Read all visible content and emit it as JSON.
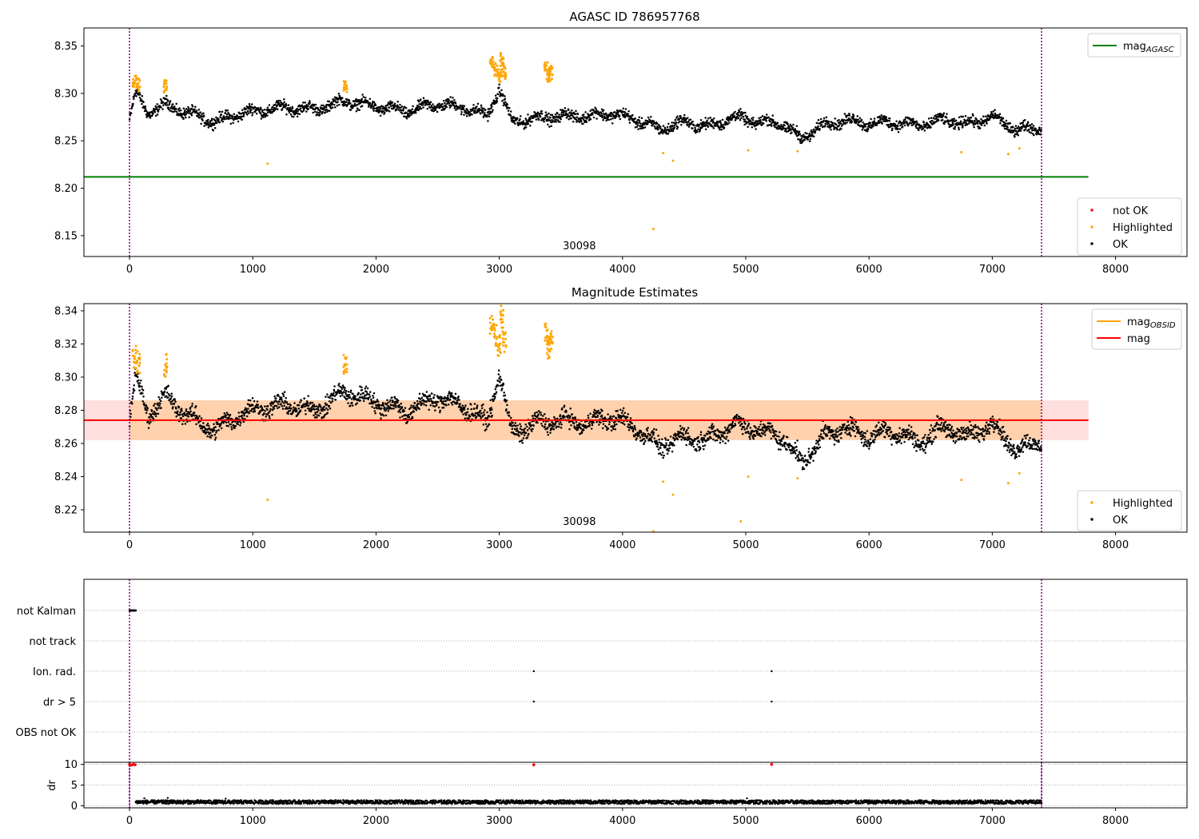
{
  "colors": {
    "ok": "#000000",
    "highlighted": "#ffa500",
    "not_ok": "#ff0000",
    "agasc_line": "#008000",
    "mag_line": "#ff0000",
    "obsid_line": "#ffa500",
    "band": "#ffb6b6",
    "vline": "#800080",
    "flag_points": "#000000"
  },
  "chart_data": [
    {
      "type": "scatter",
      "title": "AGASC ID 786957768",
      "xlim": [
        -370,
        8580
      ],
      "ylim": [
        8.128,
        8.369
      ],
      "xticks": [
        0,
        1000,
        2000,
        3000,
        4000,
        5000,
        6000,
        7000,
        8000
      ],
      "yticks": [
        8.15,
        8.2,
        8.25,
        8.3,
        8.35
      ],
      "annotation": "30098",
      "annotation_x": 3650,
      "vlines": [
        0,
        7400
      ],
      "hlines": [
        {
          "y": 8.212,
          "x": [
            -370,
            7780
          ],
          "label": "mag",
          "sub": "AGASC"
        }
      ],
      "legend_top": [
        {
          "label": "mag",
          "sub": "AGASC",
          "kind": "line",
          "color": "#008000"
        }
      ],
      "legend_bottom": [
        {
          "label": "not OK",
          "kind": "dot",
          "color": "#ff0000"
        },
        {
          "label": "Highlighted",
          "kind": "dot",
          "color": "#ffa500"
        },
        {
          "label": "OK",
          "kind": "dot",
          "color": "#000000"
        }
      ],
      "series": [
        {
          "name": "OK",
          "x": [
            0,
            50,
            150,
            300,
            500,
            700,
            900,
            1100,
            1300,
            1500,
            1750,
            2000,
            2250,
            2500,
            2750,
            2900,
            3000,
            3100,
            3300,
            3500,
            3700,
            3900,
            4100,
            4300,
            4500,
            4700,
            4900,
            5100,
            5300,
            5450,
            5600,
            5800,
            6000,
            6200,
            6400,
            6600,
            6800,
            7000,
            7200,
            7400
          ],
          "y": [
            8.272,
            8.3,
            8.28,
            8.288,
            8.278,
            8.27,
            8.279,
            8.283,
            8.285,
            8.283,
            8.292,
            8.286,
            8.281,
            8.289,
            8.284,
            8.276,
            8.305,
            8.27,
            8.274,
            8.276,
            8.276,
            8.279,
            8.273,
            8.262,
            8.27,
            8.265,
            8.275,
            8.27,
            8.268,
            8.252,
            8.265,
            8.272,
            8.268,
            8.27,
            8.266,
            8.272,
            8.268,
            8.275,
            8.262,
            8.264
          ],
          "spread": 0.01
        },
        {
          "name": "Highlighted",
          "x": [
            40,
            70,
            290,
            1120,
            1750,
            2940,
            2970,
            3000,
            3020,
            3040,
            3380,
            3400,
            3420,
            4250,
            4330,
            4410,
            5020,
            5420,
            6750,
            7130,
            7220
          ],
          "y": [
            8.312,
            8.309,
            8.307,
            8.226,
            8.307,
            8.333,
            8.325,
            8.319,
            8.336,
            8.322,
            8.326,
            8.318,
            8.322,
            8.157,
            8.237,
            8.229,
            8.24,
            8.239,
            8.238,
            8.236,
            8.242
          ]
        }
      ]
    },
    {
      "type": "scatter",
      "title": "Magnitude Estimates",
      "xlim": [
        -370,
        8580
      ],
      "ylim": [
        8.2065,
        8.3443
      ],
      "xticks": [
        0,
        1000,
        2000,
        3000,
        4000,
        5000,
        6000,
        7000,
        8000
      ],
      "yticks": [
        8.22,
        8.24,
        8.26,
        8.28,
        8.3,
        8.32,
        8.34
      ],
      "annotation": "30098",
      "annotation_x": 3650,
      "vlines": [
        0,
        7400
      ],
      "band": {
        "y": [
          8.262,
          8.286
        ],
        "x": [
          -370,
          7780
        ]
      },
      "hlines": [
        {
          "y": 8.274,
          "x": [
            -370,
            7780
          ],
          "label": "mag"
        }
      ],
      "legend_top": [
        {
          "label": "mag",
          "sub": "OBSID",
          "kind": "line",
          "color": "#ffa500"
        },
        {
          "label": "mag",
          "kind": "line",
          "color": "#ff0000"
        }
      ],
      "legend_bottom": [
        {
          "label": "Highlighted",
          "kind": "dot",
          "color": "#ffa500"
        },
        {
          "label": "OK",
          "kind": "dot",
          "color": "#000000"
        }
      ],
      "series": [
        {
          "name": "OK",
          "x": [
            0,
            50,
            150,
            300,
            500,
            700,
            900,
            1100,
            1300,
            1500,
            1750,
            2000,
            2250,
            2500,
            2750,
            2900,
            3000,
            3100,
            3300,
            3500,
            3700,
            3900,
            4100,
            4300,
            4500,
            4700,
            4900,
            5100,
            5300,
            5450,
            5600,
            5800,
            6000,
            6200,
            6400,
            6600,
            6800,
            7000,
            7200,
            7400
          ],
          "y": [
            8.272,
            8.3,
            8.278,
            8.288,
            8.275,
            8.268,
            8.278,
            8.282,
            8.283,
            8.28,
            8.291,
            8.285,
            8.279,
            8.288,
            8.281,
            8.272,
            8.303,
            8.266,
            8.272,
            8.274,
            8.272,
            8.276,
            8.27,
            8.258,
            8.264,
            8.262,
            8.272,
            8.268,
            8.264,
            8.248,
            8.262,
            8.27,
            8.264,
            8.268,
            8.26,
            8.27,
            8.264,
            8.272,
            8.256,
            8.262
          ],
          "spread": 0.009
        },
        {
          "name": "Highlighted",
          "x": [
            40,
            70,
            290,
            1120,
            1750,
            2940,
            2970,
            3000,
            3020,
            3040,
            3380,
            3400,
            3420,
            4250,
            4330,
            4410,
            4960,
            5020,
            5420,
            6750,
            7130,
            7220
          ],
          "y": [
            8.312,
            8.309,
            8.307,
            8.226,
            8.307,
            8.333,
            8.325,
            8.319,
            8.336,
            8.322,
            8.326,
            8.318,
            8.322,
            8.207,
            8.237,
            8.229,
            8.213,
            8.24,
            8.239,
            8.238,
            8.236,
            8.242
          ]
        }
      ]
    },
    {
      "type": "scatter",
      "title": "",
      "xlim": [
        -370,
        8580
      ],
      "categories": [
        "not Kalman",
        "not track",
        "Ion. rad.",
        "dr > 5",
        "OBS not OK"
      ],
      "vlines": [
        0,
        7400
      ],
      "flags": [
        {
          "category": "not Kalman",
          "x_range": [
            0,
            50
          ]
        },
        {
          "category": "Ion. rad.",
          "x": [
            3280,
            5210
          ]
        },
        {
          "category": "dr > 5",
          "x": [
            3280,
            5210
          ]
        }
      ]
    },
    {
      "type": "scatter",
      "title": "",
      "ylabel": "dr",
      "xlim": [
        -370,
        8580
      ],
      "ylim": [
        -0.5,
        10.5
      ],
      "xticks": [
        0,
        1000,
        2000,
        3000,
        4000,
        5000,
        6000,
        7000,
        8000
      ],
      "yticks": [
        0,
        5,
        10
      ],
      "vlines": [
        0,
        7400
      ],
      "series": [
        {
          "name": "OK",
          "baseline": 0.9,
          "spread": 0.45,
          "x_range": [
            50,
            7400
          ],
          "outliers_x": [
            120,
            310,
            780,
            5010
          ],
          "outliers_y": [
            1.8,
            1.9,
            1.7,
            1.8
          ]
        },
        {
          "name": "not OK",
          "x": [
            0,
            15,
            30,
            45,
            3280,
            5210
          ],
          "y": [
            10,
            9.8,
            10,
            9.9,
            9.9,
            10
          ]
        }
      ]
    }
  ]
}
